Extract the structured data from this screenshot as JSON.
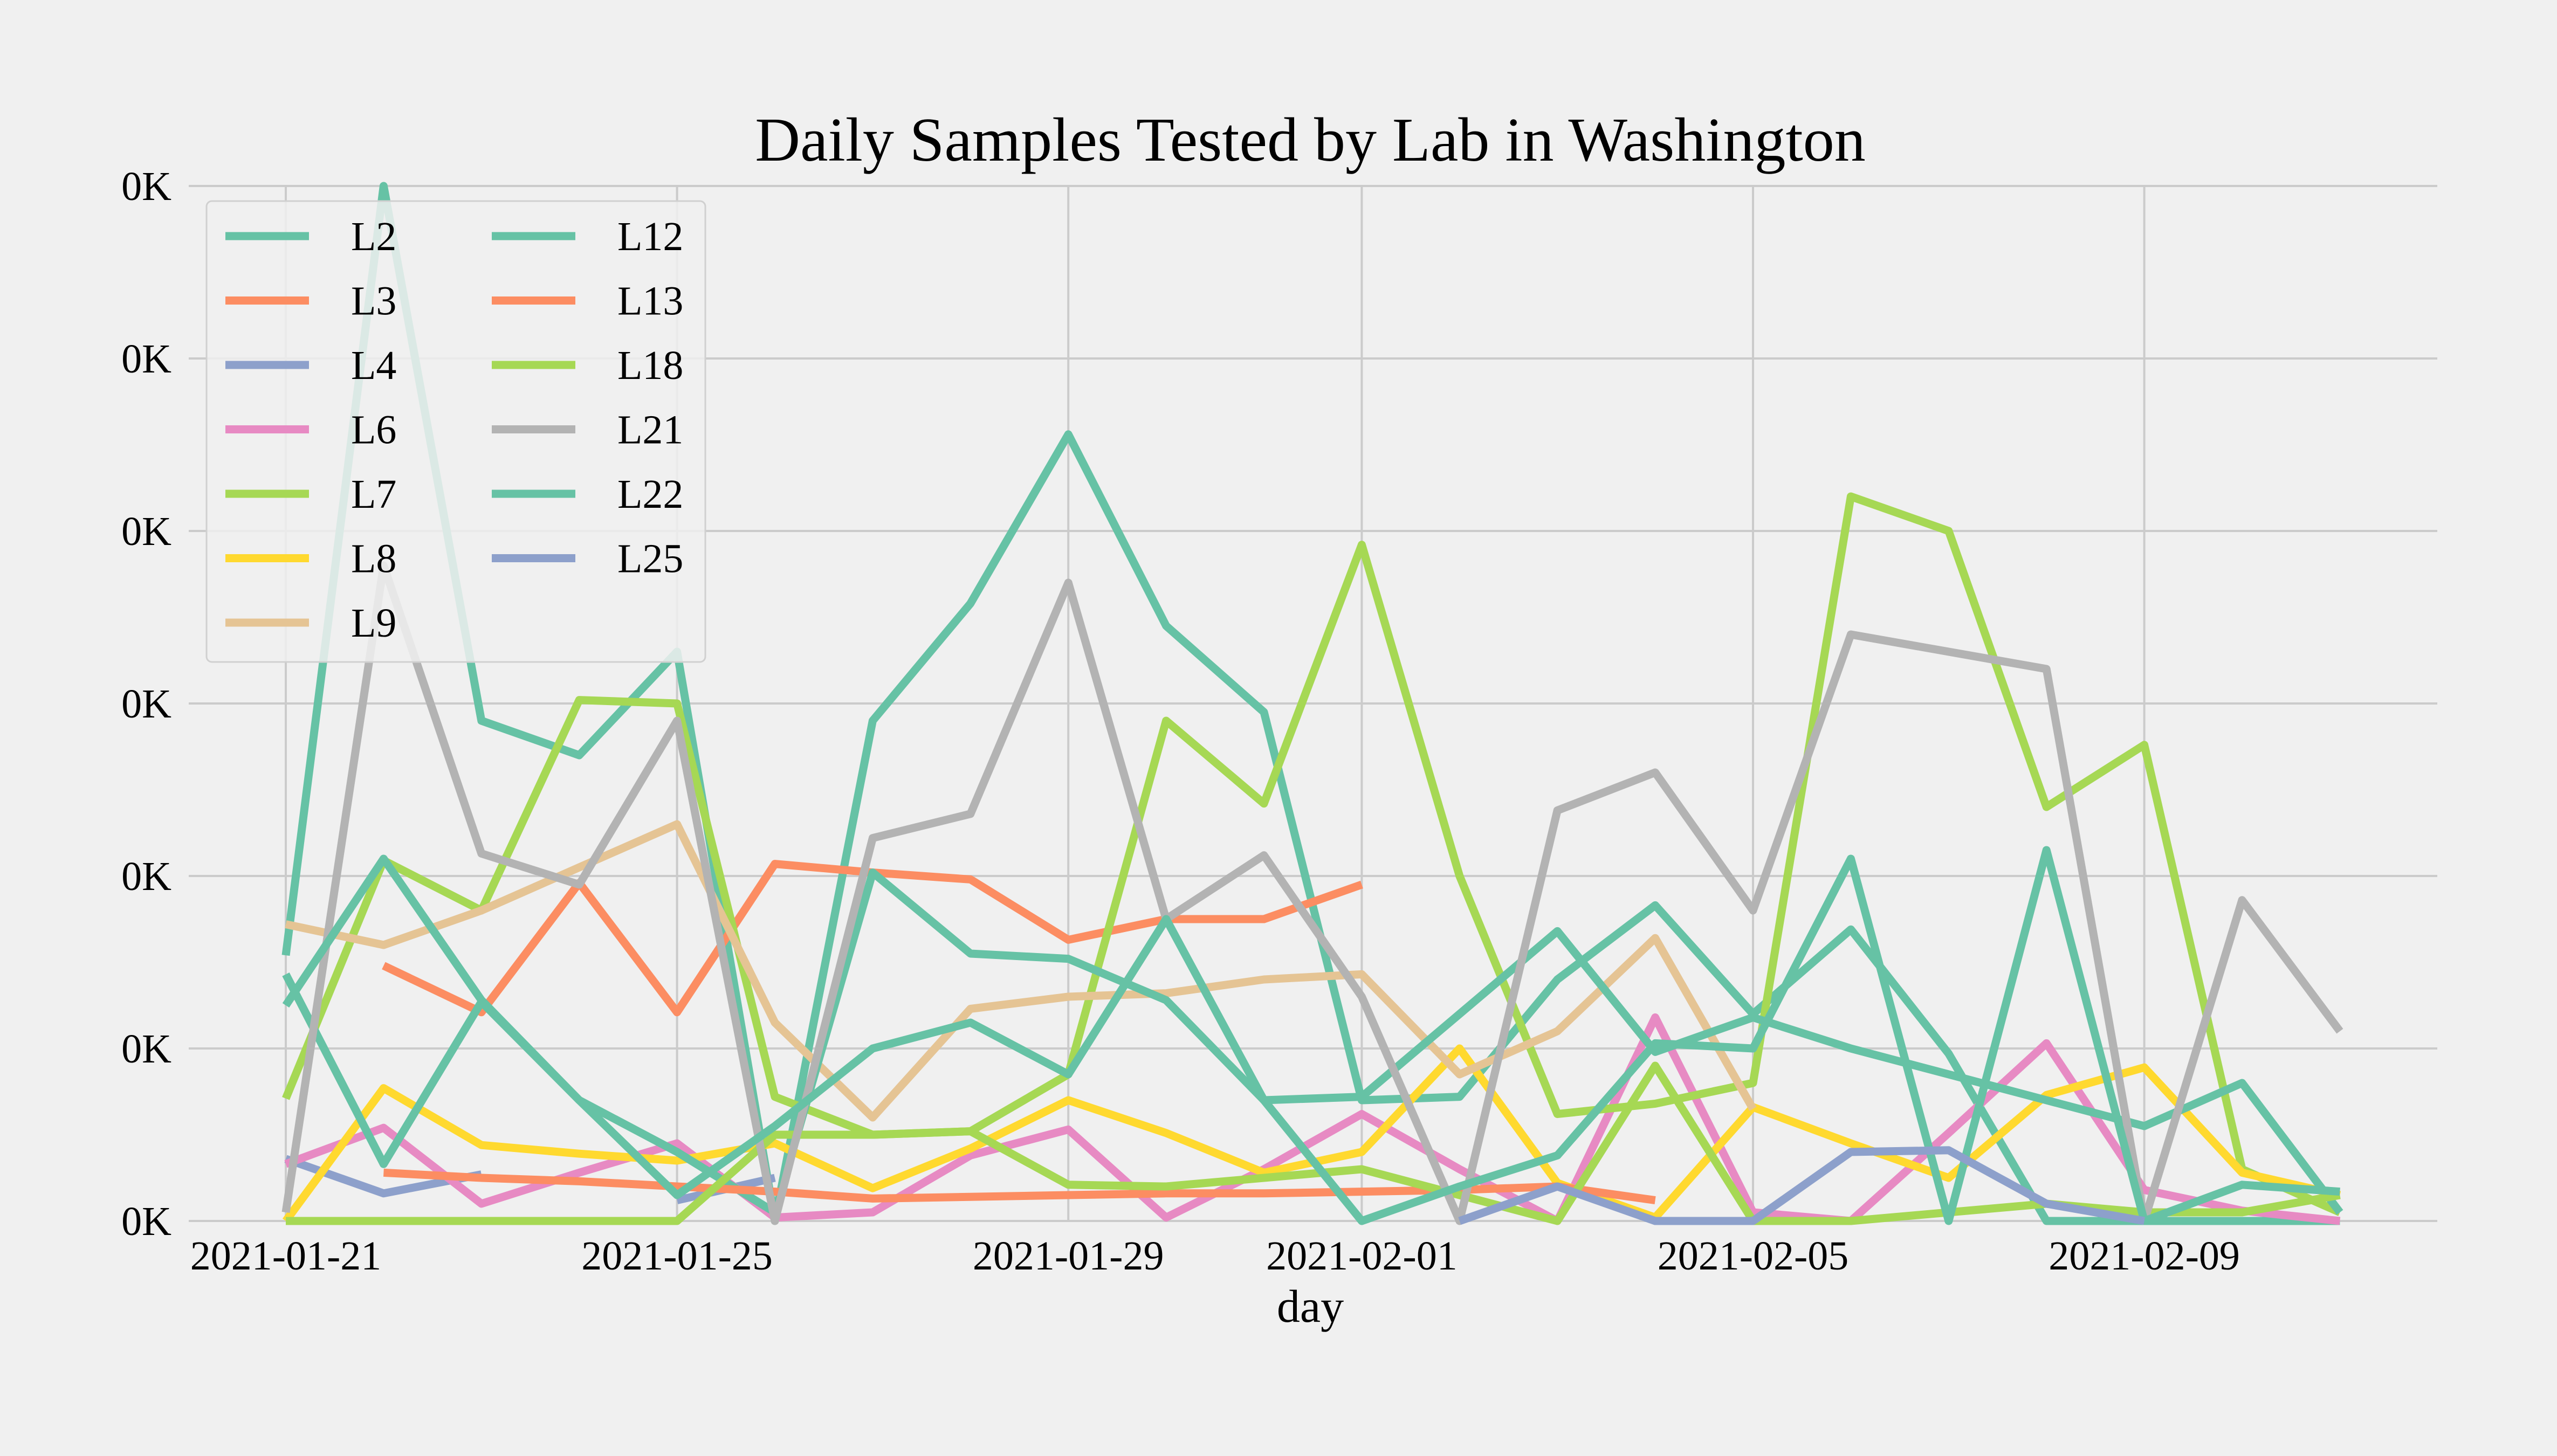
{
  "chart_data": {
    "type": "line",
    "title": "Daily Samples Tested by Lab in Washington",
    "xlabel": "day",
    "ylabel": "",
    "x_start": "2021-01-21",
    "x_end": "2021-02-11",
    "xlim": [
      "2021-01-21",
      "2021-02-11"
    ],
    "x_ticks": [
      "2021-01-21",
      "2021-01-25",
      "2021-01-29",
      "2021-02-01",
      "2021-02-05",
      "2021-02-09"
    ],
    "ylim": [
      0,
      600
    ],
    "y_ticks": [
      0,
      100,
      200,
      300,
      400,
      500,
      600
    ],
    "y_tick_labels": [
      "0K",
      "0K",
      "0K",
      "0K",
      "0K",
      "0K",
      "0K"
    ],
    "grid": true,
    "legend": {
      "position": "top-left",
      "columns": 2
    },
    "series": [
      {
        "name": "L2",
        "color": "#66c2a5",
        "values": [
          154,
          600,
          290,
          270,
          330,
          0,
          290,
          358,
          456,
          345,
          295,
          70,
          72,
          140,
          183,
          120,
          169,
          97,
          0,
          0,
          0,
          0
        ]
      },
      {
        "name": "L3",
        "color": "#fc8d62",
        "values": [
          null,
          148,
          121,
          196,
          121,
          207,
          202,
          198,
          163,
          175,
          175,
          195,
          null,
          null,
          null,
          null,
          null,
          null,
          null,
          null,
          null,
          null
        ]
      },
      {
        "name": "L4",
        "color": "#8da0cb",
        "values": [
          36,
          16,
          27,
          null,
          12,
          25,
          null,
          null,
          null,
          null,
          null,
          null,
          null,
          null,
          null,
          null,
          null,
          null,
          null,
          null,
          null,
          null
        ]
      },
      {
        "name": "L6",
        "color": "#e78ac3",
        "values": [
          33,
          54,
          10,
          28,
          45,
          2,
          5,
          38,
          53,
          2,
          30,
          62,
          30,
          0,
          118,
          5,
          0,
          51,
          103,
          18,
          6,
          0
        ]
      },
      {
        "name": "L7",
        "color": "#a6d854",
        "values": [
          71,
          209,
          180,
          302,
          300,
          72,
          50,
          52,
          85,
          290,
          242,
          392,
          200,
          62,
          68,
          80,
          420,
          400,
          240,
          276,
          30,
          5
        ]
      },
      {
        "name": "L8",
        "color": "#ffd92f",
        "values": [
          0,
          77,
          44,
          39,
          35,
          45,
          19,
          42,
          70,
          51,
          28,
          40,
          100,
          22,
          2,
          66,
          45,
          25,
          73,
          89,
          28,
          15
        ]
      },
      {
        "name": "L9",
        "color": "#e5c494",
        "values": [
          172,
          160,
          180,
          205,
          230,
          115,
          60,
          123,
          130,
          132,
          140,
          143,
          85,
          110,
          164,
          65,
          null,
          null,
          null,
          null,
          null,
          null
        ]
      },
      {
        "name": "L12",
        "color": "#66c2a5",
        "values": [
          143,
          33,
          127,
          70,
          40,
          5,
          202,
          155,
          152,
          128,
          70,
          72,
          120,
          168,
          98,
          118,
          100,
          85,
          70,
          55,
          80,
          5
        ]
      },
      {
        "name": "L13",
        "color": "#fc8d62",
        "values": [
          null,
          28,
          25,
          23,
          20,
          17,
          13,
          14,
          15,
          16,
          16,
          17,
          18,
          20,
          12,
          null,
          null,
          null,
          null,
          null,
          null,
          null
        ]
      },
      {
        "name": "L18",
        "color": "#a6d854",
        "values": [
          0,
          0,
          0,
          0,
          0,
          50,
          50,
          52,
          21,
          20,
          25,
          30,
          15,
          0,
          90,
          0,
          0,
          5,
          10,
          5,
          5,
          15
        ]
      },
      {
        "name": "L21",
        "color": "#b3b3b3",
        "values": [
          5,
          380,
          213,
          195,
          290,
          0,
          222,
          236,
          370,
          175,
          212,
          130,
          0,
          238,
          260,
          180,
          340,
          330,
          320,
          0,
          186,
          110
        ]
      },
      {
        "name": "L22",
        "color": "#66c2a5",
        "values": [
          125,
          210,
          128,
          70,
          15,
          55,
          100,
          115,
          85,
          175,
          70,
          0,
          20,
          38,
          103,
          100,
          210,
          0,
          215,
          0,
          21,
          17
        ]
      },
      {
        "name": "L25",
        "color": "#8da0cb",
        "values": [
          null,
          null,
          null,
          null,
          null,
          null,
          null,
          null,
          null,
          null,
          null,
          null,
          0,
          20,
          0,
          0,
          40,
          41,
          10,
          0,
          null,
          null
        ]
      }
    ]
  }
}
